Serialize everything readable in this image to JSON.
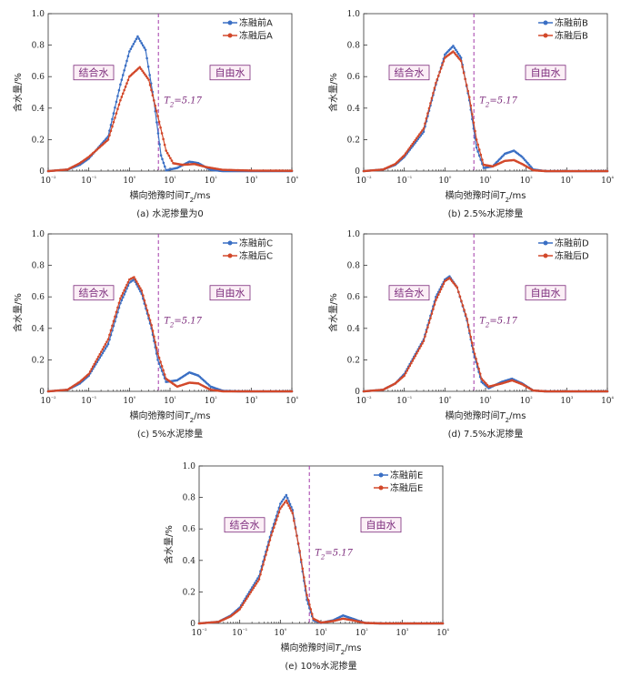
{
  "colors": {
    "before": "#3a6fc4",
    "after": "#d2482a",
    "divider": "#a23aa8",
    "region": "#7b2a7b"
  },
  "shared": {
    "xlabel": "横向弛豫时间T₂/ms",
    "ylabel": "含水量/%",
    "region_left": "结合水",
    "region_right": "自由水",
    "t2_label": "T₂=5.17",
    "t2_value": 5.17,
    "xscale": "log",
    "xlim": [
      0.01,
      10000
    ],
    "ylim": [
      0,
      1.0
    ],
    "x_ticks": [
      "10⁻²",
      "10⁻¹",
      "10⁰",
      "10¹",
      "10²",
      "10³",
      "10⁴"
    ],
    "y_ticks": [
      "0",
      "0.2",
      "0.4",
      "0.6",
      "0.8",
      "1.0"
    ],
    "legend_position": "top-right"
  },
  "chart_data": [
    {
      "type": "line",
      "title": "(a) 水泥掺量为0",
      "series": [
        {
          "name": "冻融前A",
          "points": [
            [
              0.01,
              0
            ],
            [
              0.03,
              0.01
            ],
            [
              0.06,
              0.04
            ],
            [
              0.1,
              0.08
            ],
            [
              0.3,
              0.22
            ],
            [
              0.6,
              0.55
            ],
            [
              1.0,
              0.76
            ],
            [
              1.6,
              0.855
            ],
            [
              2.5,
              0.77
            ],
            [
              4.0,
              0.45
            ],
            [
              6.0,
              0.1
            ],
            [
              8.0,
              0.005
            ],
            [
              15,
              0.02
            ],
            [
              30,
              0.06
            ],
            [
              50,
              0.05
            ],
            [
              100,
              0.008
            ],
            [
              200,
              0
            ],
            [
              10000,
              0
            ]
          ]
        },
        {
          "name": "冻融后A",
          "points": [
            [
              0.01,
              0
            ],
            [
              0.03,
              0.01
            ],
            [
              0.06,
              0.05
            ],
            [
              0.1,
              0.09
            ],
            [
              0.3,
              0.2
            ],
            [
              0.6,
              0.45
            ],
            [
              1.0,
              0.6
            ],
            [
              1.8,
              0.66
            ],
            [
              3.0,
              0.58
            ],
            [
              5.0,
              0.35
            ],
            [
              8.0,
              0.13
            ],
            [
              12,
              0.05
            ],
            [
              20,
              0.04
            ],
            [
              40,
              0.045
            ],
            [
              80,
              0.025
            ],
            [
              200,
              0.008
            ],
            [
              1000,
              0.003
            ],
            [
              10000,
              0.002
            ]
          ]
        }
      ]
    },
    {
      "type": "line",
      "title": "(b) 2.5%水泥掺量",
      "series": [
        {
          "name": "冻融前B",
          "points": [
            [
              0.01,
              0
            ],
            [
              0.03,
              0.01
            ],
            [
              0.06,
              0.04
            ],
            [
              0.1,
              0.09
            ],
            [
              0.3,
              0.25
            ],
            [
              0.6,
              0.55
            ],
            [
              1.0,
              0.74
            ],
            [
              1.6,
              0.795
            ],
            [
              2.5,
              0.72
            ],
            [
              4.0,
              0.45
            ],
            [
              6.0,
              0.15
            ],
            [
              9.0,
              0.02
            ],
            [
              15,
              0.03
            ],
            [
              30,
              0.11
            ],
            [
              50,
              0.13
            ],
            [
              80,
              0.09
            ],
            [
              150,
              0.01
            ],
            [
              300,
              0
            ],
            [
              10000,
              0
            ]
          ]
        },
        {
          "name": "冻融后B",
          "points": [
            [
              0.01,
              0
            ],
            [
              0.03,
              0.01
            ],
            [
              0.06,
              0.045
            ],
            [
              0.1,
              0.1
            ],
            [
              0.3,
              0.27
            ],
            [
              0.6,
              0.56
            ],
            [
              1.0,
              0.72
            ],
            [
              1.6,
              0.76
            ],
            [
              2.5,
              0.7
            ],
            [
              4.0,
              0.47
            ],
            [
              6.0,
              0.2
            ],
            [
              9.0,
              0.04
            ],
            [
              15,
              0.03
            ],
            [
              30,
              0.065
            ],
            [
              50,
              0.07
            ],
            [
              80,
              0.045
            ],
            [
              150,
              0.005
            ],
            [
              300,
              0
            ],
            [
              10000,
              0
            ]
          ]
        }
      ]
    },
    {
      "type": "line",
      "title": "(c) 5%水泥掺量",
      "series": [
        {
          "name": "冻融前C",
          "points": [
            [
              0.01,
              0
            ],
            [
              0.03,
              0.01
            ],
            [
              0.06,
              0.05
            ],
            [
              0.1,
              0.1
            ],
            [
              0.3,
              0.3
            ],
            [
              0.6,
              0.56
            ],
            [
              1.0,
              0.69
            ],
            [
              1.3,
              0.71
            ],
            [
              2.0,
              0.62
            ],
            [
              3.5,
              0.4
            ],
            [
              5.0,
              0.2
            ],
            [
              8.0,
              0.06
            ],
            [
              15,
              0.07
            ],
            [
              30,
              0.12
            ],
            [
              50,
              0.1
            ],
            [
              100,
              0.03
            ],
            [
              200,
              0.003
            ],
            [
              500,
              0
            ],
            [
              10000,
              0
            ]
          ]
        },
        {
          "name": "冻融后C",
          "points": [
            [
              0.01,
              0
            ],
            [
              0.03,
              0.01
            ],
            [
              0.06,
              0.06
            ],
            [
              0.1,
              0.11
            ],
            [
              0.3,
              0.33
            ],
            [
              0.6,
              0.59
            ],
            [
              1.0,
              0.71
            ],
            [
              1.3,
              0.725
            ],
            [
              2.0,
              0.64
            ],
            [
              3.5,
              0.42
            ],
            [
              5.0,
              0.24
            ],
            [
              8.0,
              0.08
            ],
            [
              15,
              0.03
            ],
            [
              30,
              0.055
            ],
            [
              50,
              0.05
            ],
            [
              100,
              0.01
            ],
            [
              200,
              0
            ],
            [
              10000,
              0
            ]
          ]
        }
      ]
    },
    {
      "type": "line",
      "title": "(d) 7.5%水泥掺量",
      "series": [
        {
          "name": "冻融前D",
          "points": [
            [
              0.01,
              0
            ],
            [
              0.03,
              0.01
            ],
            [
              0.06,
              0.05
            ],
            [
              0.1,
              0.11
            ],
            [
              0.3,
              0.33
            ],
            [
              0.6,
              0.6
            ],
            [
              1.0,
              0.71
            ],
            [
              1.3,
              0.73
            ],
            [
              2.0,
              0.66
            ],
            [
              3.5,
              0.45
            ],
            [
              5.0,
              0.25
            ],
            [
              8.0,
              0.06
            ],
            [
              12,
              0.02
            ],
            [
              25,
              0.06
            ],
            [
              45,
              0.08
            ],
            [
              80,
              0.05
            ],
            [
              150,
              0.005
            ],
            [
              300,
              0
            ],
            [
              10000,
              0
            ]
          ]
        },
        {
          "name": "冻融后D",
          "points": [
            [
              0.01,
              0
            ],
            [
              0.03,
              0.01
            ],
            [
              0.06,
              0.05
            ],
            [
              0.1,
              0.1
            ],
            [
              0.3,
              0.32
            ],
            [
              0.6,
              0.58
            ],
            [
              1.0,
              0.7
            ],
            [
              1.3,
              0.72
            ],
            [
              2.0,
              0.66
            ],
            [
              3.5,
              0.46
            ],
            [
              5.0,
              0.27
            ],
            [
              8.0,
              0.08
            ],
            [
              12,
              0.03
            ],
            [
              25,
              0.05
            ],
            [
              45,
              0.07
            ],
            [
              80,
              0.045
            ],
            [
              150,
              0.005
            ],
            [
              300,
              0
            ],
            [
              10000,
              0
            ]
          ]
        }
      ]
    },
    {
      "type": "line",
      "title": "(e) 10%水泥掺量",
      "series": [
        {
          "name": "冻融前E",
          "points": [
            [
              0.01,
              0
            ],
            [
              0.03,
              0.01
            ],
            [
              0.06,
              0.05
            ],
            [
              0.1,
              0.1
            ],
            [
              0.3,
              0.3
            ],
            [
              0.6,
              0.58
            ],
            [
              1.0,
              0.76
            ],
            [
              1.4,
              0.815
            ],
            [
              2.0,
              0.72
            ],
            [
              3.0,
              0.45
            ],
            [
              4.5,
              0.15
            ],
            [
              6.5,
              0.02
            ],
            [
              10,
              0.003
            ],
            [
              20,
              0.02
            ],
            [
              35,
              0.05
            ],
            [
              60,
              0.03
            ],
            [
              120,
              0.003
            ],
            [
              300,
              0
            ],
            [
              10000,
              0
            ]
          ]
        },
        {
          "name": "冻融后E",
          "points": [
            [
              0.01,
              0
            ],
            [
              0.03,
              0.01
            ],
            [
              0.06,
              0.045
            ],
            [
              0.1,
              0.09
            ],
            [
              0.3,
              0.28
            ],
            [
              0.6,
              0.56
            ],
            [
              1.0,
              0.73
            ],
            [
              1.4,
              0.78
            ],
            [
              2.0,
              0.7
            ],
            [
              3.0,
              0.46
            ],
            [
              4.5,
              0.18
            ],
            [
              6.5,
              0.03
            ],
            [
              10,
              0.005
            ],
            [
              20,
              0.015
            ],
            [
              35,
              0.03
            ],
            [
              60,
              0.02
            ],
            [
              120,
              0.003
            ],
            [
              300,
              0
            ],
            [
              10000,
              0
            ]
          ]
        }
      ]
    }
  ]
}
